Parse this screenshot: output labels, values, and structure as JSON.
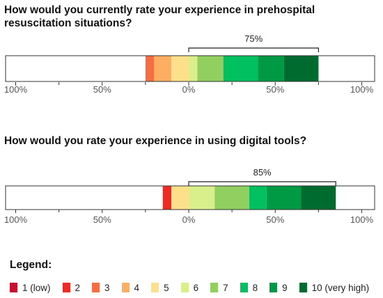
{
  "chart_data": [
    {
      "type": "bar",
      "title": "How would you currently rate your experience in prehospital resuscitation situations?",
      "axis_ticks": [
        "100%",
        "50%",
        "0%",
        "50%",
        "100%"
      ],
      "xlim": [
        -100,
        100
      ],
      "bracket_label": "75%",
      "bracket_range": [
        0,
        75
      ],
      "segments": [
        {
          "category": "3",
          "start": -25,
          "end": -20
        },
        {
          "category": "4",
          "start": -20,
          "end": -10
        },
        {
          "category": "5",
          "start": -10,
          "end": 0
        },
        {
          "category": "6",
          "start": 0,
          "end": 5
        },
        {
          "category": "7",
          "start": 5,
          "end": 20
        },
        {
          "category": "8",
          "start": 20,
          "end": 40
        },
        {
          "category": "9",
          "start": 40,
          "end": 55
        },
        {
          "category": "10 (very high)",
          "start": 55,
          "end": 75
        }
      ]
    },
    {
      "type": "bar",
      "title": "How would you rate your experience in using digital tools?",
      "axis_ticks": [
        "100%",
        "50%",
        "0%",
        "50%",
        "100%"
      ],
      "xlim": [
        -100,
        100
      ],
      "bracket_label": "85%",
      "bracket_range": [
        0,
        85
      ],
      "segments": [
        {
          "category": "2",
          "start": -15,
          "end": -10
        },
        {
          "category": "5",
          "start": -10,
          "end": 0
        },
        {
          "category": "6",
          "start": 0,
          "end": 15
        },
        {
          "category": "7",
          "start": 15,
          "end": 35
        },
        {
          "category": "8",
          "start": 35,
          "end": 45
        },
        {
          "category": "9",
          "start": 45,
          "end": 65
        },
        {
          "category": "10 (very high)",
          "start": 65,
          "end": 85
        }
      ]
    }
  ],
  "legend": {
    "title": "Legend:",
    "items": [
      {
        "label": "1 (low)",
        "color": "#c8102e"
      },
      {
        "label": "2",
        "color": "#ee2a24"
      },
      {
        "label": "3",
        "color": "#f46d43"
      },
      {
        "label": "4",
        "color": "#fdae61"
      },
      {
        "label": "5",
        "color": "#fee08b"
      },
      {
        "label": "6",
        "color": "#d9ef8b"
      },
      {
        "label": "7",
        "color": "#91cf60"
      },
      {
        "label": "8",
        "color": "#00c060"
      },
      {
        "label": "9",
        "color": "#009a44"
      },
      {
        "label": "10 (very high)",
        "color": "#006b2f"
      }
    ]
  }
}
